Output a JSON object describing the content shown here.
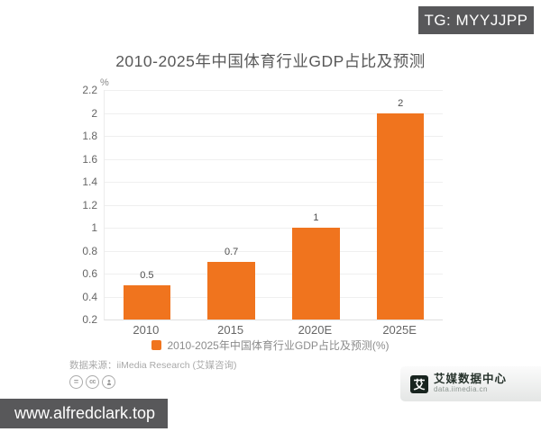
{
  "overlays": {
    "tg_badge": "TG: MYYJJPP",
    "site_badge": "www.alfredclark.top"
  },
  "chart": {
    "title": "2010-2025年中国体育行业GDP占比及预测",
    "unit_label": "%",
    "legend_label": "2010-2025年中国体育行业GDP占比及预测(%)",
    "source": "数据来源：iiMedia Research (艾媒咨询)"
  },
  "chart_data": {
    "type": "bar",
    "title": "2010-2025年中国体育行业GDP占比及预测",
    "categories": [
      "2010",
      "2015",
      "2020E",
      "2025E"
    ],
    "values": [
      0.5,
      0.7,
      1,
      2
    ],
    "data_labels": [
      "0.5",
      "0.7",
      "1",
      "2"
    ],
    "xlabel": "",
    "ylabel": "%",
    "ylim": [
      0.2,
      2.2
    ],
    "yticks": [
      0.2,
      0.4,
      0.6,
      0.8,
      1,
      1.2,
      1.4,
      1.6,
      1.8,
      2,
      2.2
    ],
    "ytick_labels": [
      "0.2",
      "0.4",
      "0.6",
      "0.8",
      "1",
      "1.2",
      "1.4",
      "1.6",
      "1.8",
      "2",
      "2.2"
    ],
    "grid": true,
    "legend": [
      "2010-2025年中国体育行业GDP占比及预测(%)"
    ],
    "legend_position": "bottom",
    "bar_color": "#f0741e"
  },
  "footer": {
    "cc_icons": [
      "cc-nd-icon",
      "cc-icon",
      "cc-by-icon"
    ],
    "brand_logo_char": "艾",
    "brand_name": "艾媒数据中心",
    "brand_url": "data.iimedia.cn"
  },
  "colors": {
    "accent_orange": "#f0741e",
    "badge_gray": "#58585a"
  }
}
